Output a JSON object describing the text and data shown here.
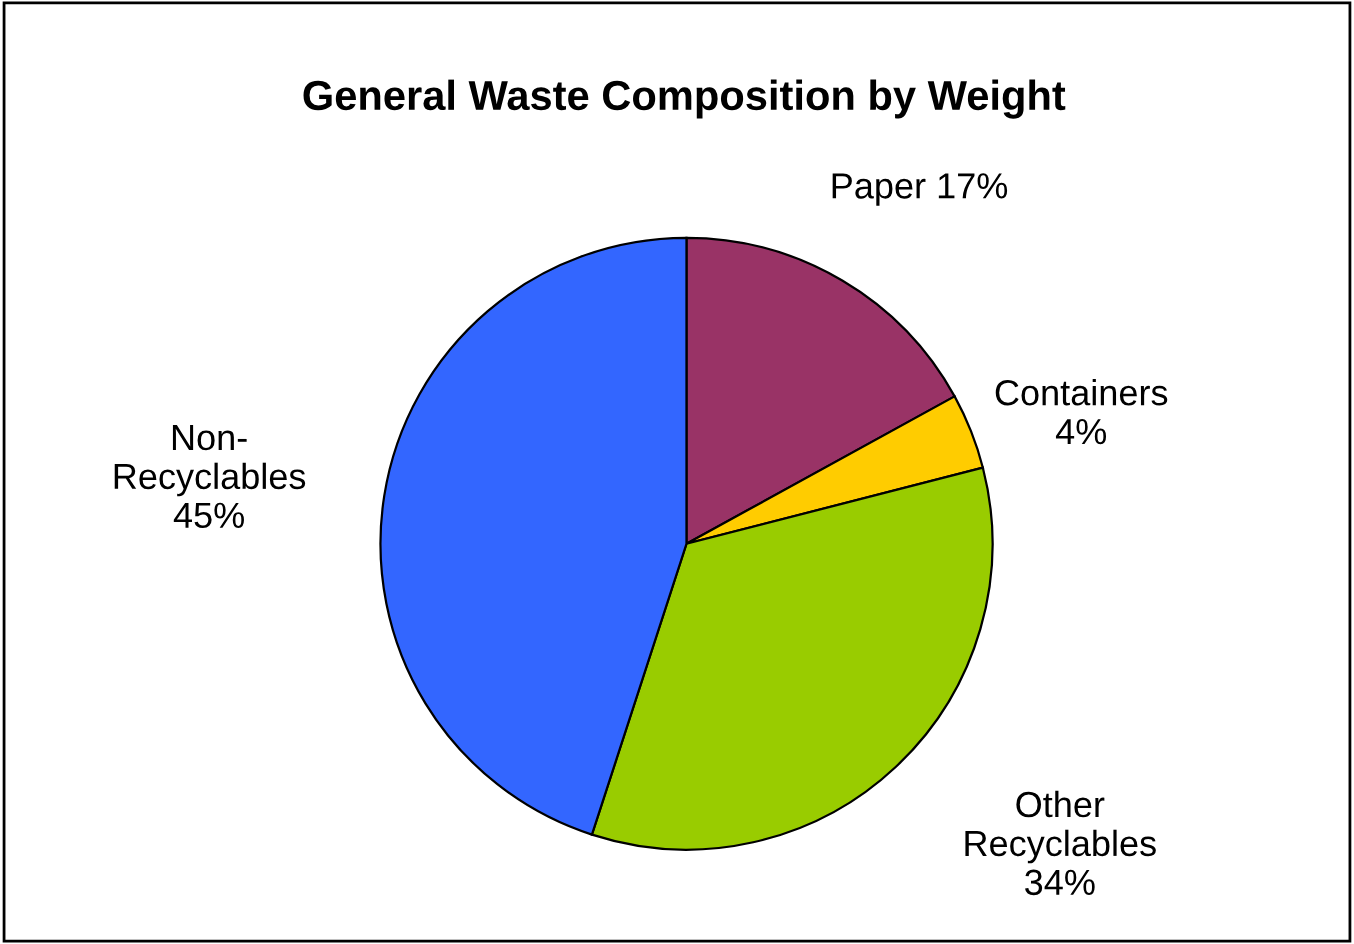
{
  "chart_data": {
    "type": "pie",
    "title": "General Waste Composition by Weight",
    "categories": [
      "Paper",
      "Containers",
      "Other Recyclables",
      "Non-Recyclables"
    ],
    "values": [
      17,
      4,
      34,
      45
    ],
    "value_labels": [
      "17%",
      "4%",
      "34%",
      "45%"
    ],
    "colors": [
      "#993366",
      "#ffcc00",
      "#99cc00",
      "#3366ff"
    ],
    "legend": false
  }
}
